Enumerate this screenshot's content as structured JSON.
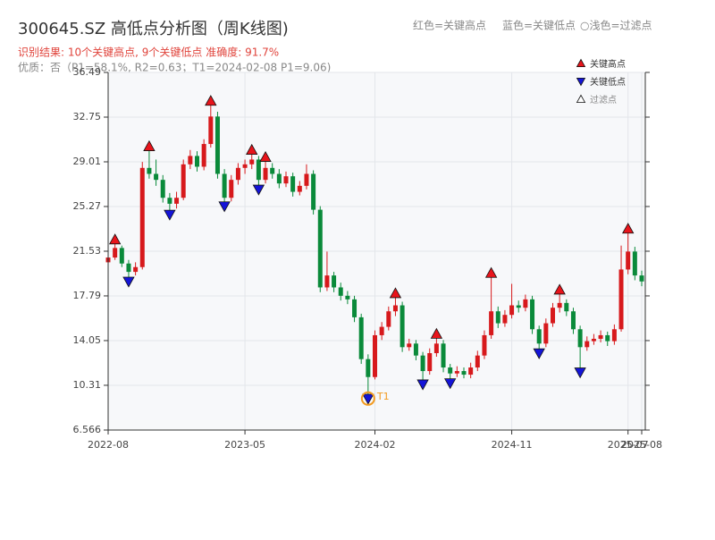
{
  "chart_data": {
    "type": "candlestick",
    "title": "300645.SZ 高低点分析图（周K线图)",
    "subtitle": "识别结果: 10个关键高点, 9个关键低点  准确度: 91.7%",
    "note": "优质：否（P1=58.1%, R2=0.63；T1=2024-02-08 P1=9.06)",
    "legend_notes": [
      "红色=关键高点",
      "蓝色=关键低点",
      "○浅色=过滤点"
    ],
    "annotation": "T1",
    "up_color": "#d7191c",
    "down_color": "#0a8a3a",
    "ylim": [
      6.566,
      36.49
    ],
    "yticks": [
      6.566,
      10.31,
      14.05,
      17.79,
      21.53,
      25.27,
      29.01,
      32.75,
      36.49
    ],
    "grid": true,
    "categories": [
      "2022-08",
      null,
      null,
      null,
      null,
      null,
      null,
      null,
      null,
      null,
      null,
      null,
      null,
      null,
      null,
      null,
      null,
      null,
      null,
      null,
      "2023-05",
      null,
      null,
      null,
      null,
      null,
      null,
      null,
      null,
      null,
      null,
      null,
      null,
      null,
      null,
      null,
      null,
      null,
      null,
      "2024-02",
      null,
      null,
      null,
      null,
      null,
      null,
      null,
      null,
      null,
      null,
      null,
      null,
      null,
      null,
      null,
      null,
      null,
      null,
      null,
      "2024-11",
      null,
      null,
      null,
      null,
      null,
      null,
      null,
      null,
      null,
      null,
      null,
      null,
      null,
      null,
      null,
      null,
      "2025-07",
      null,
      "2025-08"
    ],
    "open": [
      20.6,
      21.0,
      21.8,
      20.5,
      19.8,
      20.2,
      28.5,
      28.0,
      27.5,
      26.0,
      25.5,
      26.0,
      28.8,
      29.5,
      28.6,
      30.5,
      32.8,
      28.0,
      26.0,
      27.5,
      28.5,
      28.8,
      29.2,
      27.5,
      28.5,
      28.0,
      27.2,
      27.8,
      26.5,
      27.0,
      28.0,
      25.0,
      18.5,
      19.5,
      18.5,
      17.8,
      17.5,
      16.0,
      12.5,
      11.0,
      14.5,
      15.2,
      16.5,
      17.0,
      13.5,
      13.8,
      12.8,
      11.5,
      13.0,
      13.8,
      11.8,
      11.3,
      11.5,
      11.2,
      11.8,
      12.8,
      14.5,
      16.5,
      15.5,
      16.2,
      17.0,
      16.8,
      17.5,
      15.0,
      13.8,
      15.5,
      16.8,
      17.2,
      16.5,
      15.0,
      13.5,
      14.0,
      14.2,
      14.5,
      14.0,
      15.0,
      20.0,
      21.5,
      19.5
    ],
    "high": [
      21.3,
      22.5,
      22.0,
      20.8,
      20.6,
      29.0,
      30.3,
      29.2,
      27.9,
      26.4,
      26.5,
      29.2,
      30.0,
      29.9,
      30.9,
      34.1,
      33.2,
      28.4,
      27.9,
      28.9,
      29.2,
      30.0,
      29.5,
      29.4,
      28.9,
      28.4,
      28.2,
      28.1,
      27.4,
      28.8,
      28.3,
      25.3,
      21.5,
      19.8,
      18.9,
      18.2,
      17.8,
      16.3,
      12.9,
      14.9,
      15.6,
      16.9,
      18.0,
      17.3,
      14.2,
      14.1,
      13.1,
      13.4,
      14.6,
      14.1,
      12.1,
      11.9,
      11.8,
      12.2,
      13.2,
      14.9,
      19.7,
      16.9,
      16.6,
      18.8,
      17.4,
      17.9,
      17.8,
      15.3,
      15.9,
      17.2,
      18.3,
      17.5,
      16.8,
      15.3,
      14.4,
      14.6,
      14.9,
      14.8,
      15.4,
      22.0,
      23.4,
      21.9,
      19.9
    ],
    "low": [
      20.2,
      20.8,
      20.2,
      19.0,
      19.5,
      20.0,
      27.6,
      27.0,
      25.6,
      24.6,
      25.1,
      25.8,
      28.4,
      28.2,
      28.3,
      30.2,
      27.6,
      25.3,
      25.7,
      27.1,
      28.0,
      28.4,
      26.7,
      27.2,
      27.6,
      26.8,
      26.9,
      26.1,
      26.2,
      26.7,
      24.6,
      18.1,
      18.2,
      18.1,
      17.4,
      17.1,
      15.6,
      12.1,
      9.2,
      10.8,
      14.1,
      14.9,
      16.1,
      13.1,
      13.2,
      12.4,
      10.4,
      11.2,
      12.7,
      11.4,
      10.5,
      11.0,
      10.9,
      10.9,
      11.5,
      12.5,
      14.2,
      15.1,
      15.2,
      15.9,
      16.4,
      16.5,
      14.6,
      13.0,
      13.5,
      15.2,
      16.4,
      16.1,
      14.6,
      11.4,
      13.2,
      13.7,
      13.9,
      13.6,
      13.7,
      14.8,
      19.6,
      19.1,
      18.6
    ],
    "close": [
      21.0,
      21.8,
      20.5,
      19.8,
      20.2,
      28.5,
      28.0,
      27.5,
      26.0,
      25.5,
      26.0,
      28.8,
      29.5,
      28.6,
      30.5,
      32.8,
      28.0,
      26.0,
      27.5,
      28.5,
      28.8,
      29.2,
      27.5,
      28.5,
      28.0,
      27.2,
      27.8,
      26.5,
      27.0,
      28.0,
      25.0,
      18.5,
      19.5,
      18.5,
      17.8,
      17.5,
      16.0,
      12.5,
      11.0,
      14.5,
      15.2,
      16.5,
      17.0,
      13.5,
      13.8,
      12.8,
      11.5,
      13.0,
      13.8,
      11.8,
      11.3,
      11.5,
      11.2,
      11.8,
      12.8,
      14.5,
      16.5,
      15.5,
      16.2,
      17.0,
      16.8,
      17.5,
      15.0,
      13.8,
      15.5,
      16.8,
      17.2,
      16.5,
      15.0,
      13.5,
      14.0,
      14.2,
      14.5,
      14.0,
      15.0,
      20.0,
      21.5,
      19.5,
      19.0
    ],
    "series": [
      {
        "name": "关键高点",
        "color": "#e8141b",
        "shape": "up",
        "values": [
          null,
          22.5,
          null,
          null,
          null,
          null,
          30.3,
          null,
          null,
          null,
          null,
          null,
          null,
          null,
          null,
          34.1,
          null,
          null,
          null,
          null,
          null,
          30.0,
          null,
          29.4,
          null,
          null,
          null,
          null,
          null,
          null,
          null,
          null,
          null,
          null,
          null,
          null,
          null,
          null,
          null,
          null,
          null,
          null,
          18.0,
          null,
          null,
          null,
          null,
          null,
          14.6,
          null,
          null,
          null,
          null,
          null,
          null,
          null,
          19.7,
          null,
          null,
          null,
          null,
          null,
          null,
          null,
          null,
          null,
          18.3,
          null,
          null,
          null,
          null,
          null,
          null,
          null,
          null,
          null,
          23.4,
          null,
          null
        ]
      },
      {
        "name": "关键低点",
        "color": "#1414d8",
        "shape": "down",
        "values": [
          null,
          null,
          null,
          19.0,
          null,
          null,
          null,
          null,
          null,
          24.6,
          null,
          null,
          null,
          null,
          null,
          null,
          null,
          25.3,
          null,
          null,
          null,
          null,
          26.7,
          null,
          null,
          null,
          null,
          null,
          null,
          null,
          null,
          null,
          null,
          null,
          null,
          null,
          null,
          null,
          9.2,
          null,
          null,
          null,
          null,
          null,
          null,
          null,
          10.4,
          null,
          null,
          null,
          10.5,
          null,
          null,
          null,
          null,
          null,
          null,
          null,
          null,
          null,
          null,
          null,
          null,
          13.0,
          null,
          null,
          null,
          null,
          null,
          11.4,
          null,
          null,
          null,
          null,
          null,
          null,
          null,
          null,
          null
        ]
      },
      {
        "name": "过滤点",
        "color": "#ffffff",
        "shape": "up",
        "values": [
          null,
          null,
          null,
          null,
          null,
          null,
          null,
          null,
          null,
          null,
          null,
          null,
          null,
          null,
          null,
          null,
          null,
          null,
          null,
          null,
          null,
          null,
          null,
          null,
          null,
          null,
          null,
          null,
          null,
          null,
          null,
          null,
          null,
          null,
          null,
          null,
          null,
          null,
          null,
          null,
          null,
          null,
          null,
          null,
          null,
          null,
          null,
          null,
          null,
          null,
          null,
          null,
          null,
          null,
          null,
          null,
          null,
          null,
          null,
          null,
          null,
          null,
          null,
          null,
          null,
          null,
          null,
          null,
          null,
          null,
          null,
          null,
          null,
          null,
          null,
          null,
          null,
          null,
          null
        ]
      }
    ]
  }
}
